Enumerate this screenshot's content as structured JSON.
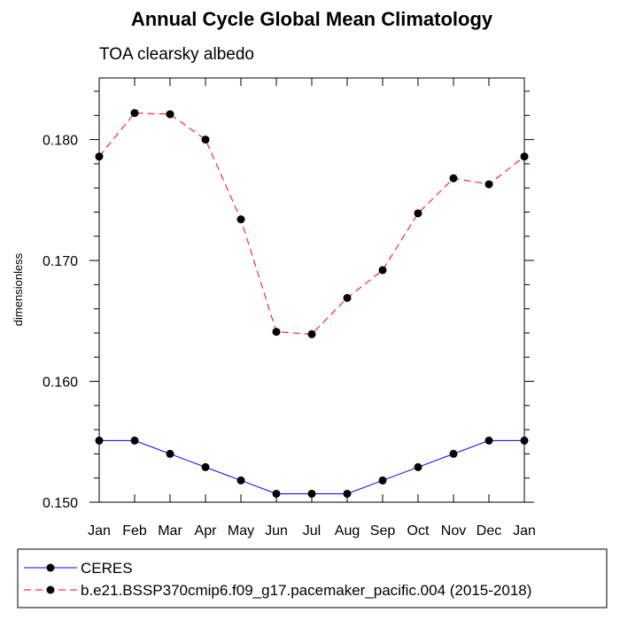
{
  "chart_data": {
    "type": "line",
    "title": "Annual Cycle Global Mean Climatology",
    "subtitle": "TOA clearsky albedo",
    "ylabel": "dimensionless",
    "xlabel": "",
    "categories": [
      "Jan",
      "Feb",
      "Mar",
      "Apr",
      "May",
      "Jun",
      "Jul",
      "Aug",
      "Sep",
      "Oct",
      "Nov",
      "Dec",
      "Jan"
    ],
    "ylim": [
      0.15,
      0.1851
    ],
    "yticks": [
      "0.150",
      "0.160",
      "0.170",
      "0.180"
    ],
    "grid": false,
    "legend_position": "bottom",
    "series": [
      {
        "name": "CERES",
        "color": "#0000ff",
        "line_style": "solid",
        "marker": "circle",
        "values": [
          0.1551,
          0.1551,
          0.154,
          0.1529,
          0.1518,
          0.1507,
          0.1507,
          0.1507,
          0.1518,
          0.1529,
          0.154,
          0.1551,
          0.1551
        ]
      },
      {
        "name": "b.e21.BSSP370cmip6.f09_g17.pacemaker_pacific.004 (2015-2018)",
        "color": "#ff0000",
        "line_style": "dashed",
        "marker": "circle",
        "values": [
          0.1786,
          0.1822,
          0.1821,
          0.18,
          0.1734,
          0.1641,
          0.1639,
          0.1669,
          0.1692,
          0.1739,
          0.1768,
          0.1763,
          0.1786
        ]
      }
    ]
  }
}
